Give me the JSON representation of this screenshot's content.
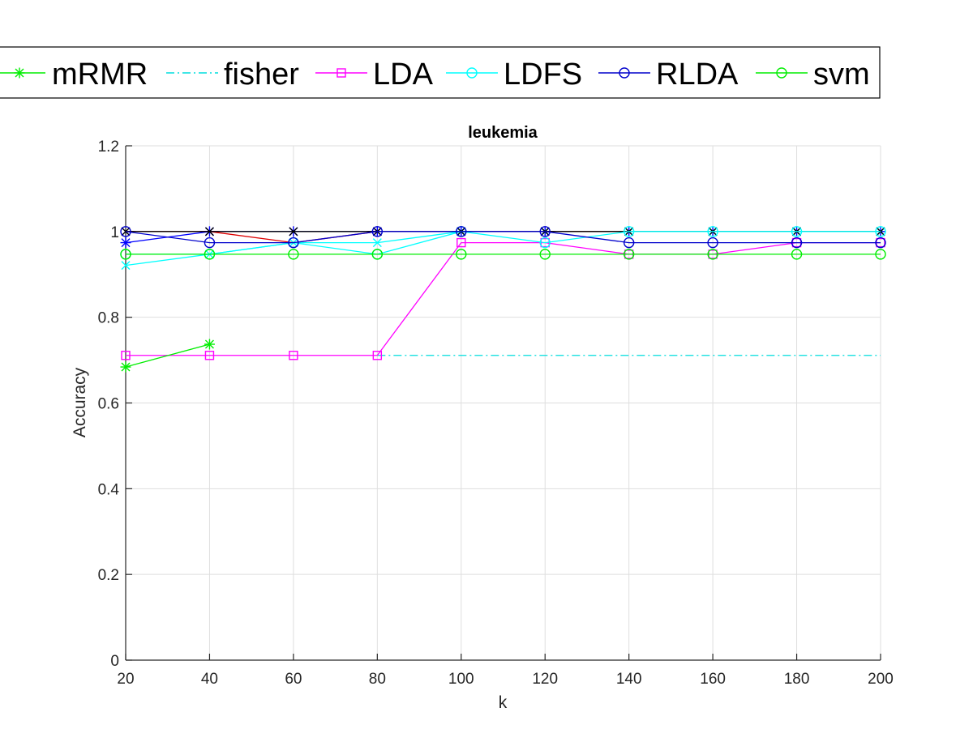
{
  "chart_data": {
    "type": "line",
    "title": "leukemia",
    "xlabel": "k",
    "ylabel": "Accuracy",
    "xlim": [
      20,
      200
    ],
    "ylim": [
      0,
      1.2
    ],
    "x_ticks": [
      "20",
      "40",
      "60",
      "80",
      "100",
      "120",
      "140",
      "160",
      "180",
      "200"
    ],
    "y_ticks": [
      "0",
      "0.2",
      "0.4",
      "0.6",
      "0.8",
      "1",
      "1.2"
    ],
    "grid": true,
    "legend_position": "top",
    "x": [
      20,
      40,
      60,
      80,
      100,
      120,
      140,
      160,
      180,
      200
    ],
    "series": [
      {
        "name": "mRMR",
        "color": "#00ee00",
        "marker": "star",
        "line": "solid",
        "values": [
          0.684,
          0.737,
          null,
          null,
          null,
          null,
          null,
          null,
          null,
          null
        ]
      },
      {
        "name": "fisher",
        "color": "#00dddd",
        "marker": "none",
        "line": "dashdot",
        "values": [
          null,
          null,
          null,
          0.711,
          0.711,
          0.711,
          0.711,
          0.711,
          0.711,
          0.711
        ]
      },
      {
        "name": "LDA",
        "color": "#ff00ff",
        "marker": "square",
        "line": "solid",
        "values": [
          0.711,
          0.711,
          0.711,
          0.711,
          0.974,
          0.974,
          0.947,
          0.947,
          0.974,
          0.974
        ]
      },
      {
        "name": "LDFS",
        "color": "#00ffff",
        "marker": "circle",
        "line": "solid",
        "values": [
          0.947,
          0.947,
          0.974,
          0.947,
          1.0,
          0.974,
          1.0,
          1.0,
          1.0,
          1.0
        ]
      },
      {
        "name": "RLDA",
        "color": "#0000cc",
        "marker": "circle",
        "line": "solid",
        "values": [
          1.0,
          0.974,
          0.974,
          1.0,
          1.0,
          1.0,
          0.974,
          0.974,
          0.974,
          0.974
        ]
      },
      {
        "name": "svm",
        "color": "#00ee00",
        "marker": "circle",
        "line": "solid",
        "values": [
          0.947,
          0.947,
          0.947,
          0.947,
          0.947,
          0.947,
          0.947,
          0.947,
          0.947,
          0.947
        ]
      },
      {
        "color": "#000000",
        "marker": "x",
        "line": "solid",
        "values": [
          1.0,
          1.0,
          1.0,
          1.0,
          1.0,
          1.0,
          1.0,
          1.0,
          1.0,
          1.0
        ]
      },
      {
        "color": "#dd0000",
        "marker": "none",
        "line": "solid",
        "values": [
          1.0,
          1.0,
          0.974,
          1.0,
          1.0,
          1.0,
          1.0,
          1.0,
          1.0,
          1.0
        ]
      },
      {
        "color": "#00ffff",
        "marker": "x",
        "line": "solid",
        "values": [
          0.921,
          0.947,
          0.974,
          0.974,
          1.0,
          1.0,
          1.0,
          1.0,
          1.0,
          1.0
        ]
      },
      {
        "color": "#0000ff",
        "marker": "star",
        "line": "solid",
        "values": [
          0.974,
          1.0,
          1.0,
          1.0,
          1.0,
          1.0,
          1.0,
          1.0,
          1.0,
          1.0
        ]
      }
    ]
  }
}
